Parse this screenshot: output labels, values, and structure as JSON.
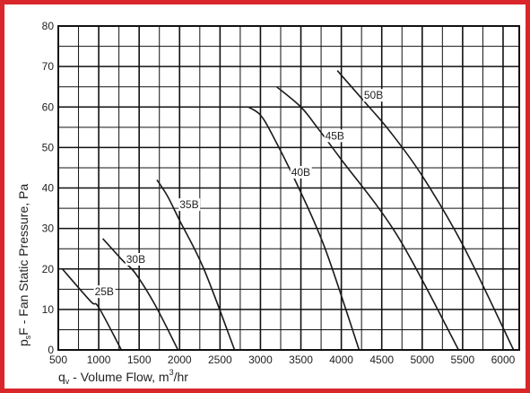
{
  "chart_data": {
    "type": "line",
    "title": "",
    "xlabel": "qv - Volume Flow, m3/hr",
    "ylabel": "psF - Fan Static Pressure, Pa",
    "xlabel_parts": {
      "symbol": "q",
      "sub": "v",
      "text": " - Volume Flow, m",
      "sup": "3",
      "tail": "/hr"
    },
    "ylabel_parts": {
      "symbol": "p",
      "sub": "s",
      "text": "F - Fan Static Pressure, Pa"
    },
    "xlim": [
      500,
      6200
    ],
    "ylim": [
      0,
      80
    ],
    "x_ticks": [
      "500",
      "1000",
      "1500",
      "2000",
      "2500",
      "3000",
      "3500",
      "4000",
      "4500",
      "5000",
      "5500",
      "6000"
    ],
    "y_ticks": [
      "0",
      "10",
      "20",
      "30",
      "40",
      "50",
      "60",
      "70",
      "80"
    ],
    "grid": true,
    "line_color": "#1a1a1a",
    "series": [
      {
        "name": "25B",
        "x": [
          550,
          900,
          1000,
          1280
        ],
        "y": [
          20,
          12,
          10.5,
          0
        ],
        "label_x": 950,
        "label_y": 13.5
      },
      {
        "name": "30B",
        "x": [
          1050,
          1300,
          1450,
          1700,
          1980
        ],
        "y": [
          27.5,
          22,
          19,
          11,
          0
        ],
        "label_x": 1340,
        "label_y": 21.5
      },
      {
        "name": "35B",
        "x": [
          1720,
          1850,
          2000,
          2300,
          2680
        ],
        "y": [
          42,
          38,
          32,
          20,
          0
        ],
        "label_x": 2000,
        "label_y": 35
      },
      {
        "name": "40B",
        "x": [
          2850,
          3000,
          3150,
          3450,
          3800,
          4220
        ],
        "y": [
          60,
          58,
          53,
          41,
          25,
          0
        ],
        "label_x": 3380,
        "label_y": 43
      },
      {
        "name": "45B",
        "x": [
          3200,
          3500,
          3700,
          4000,
          4700,
          5450
        ],
        "y": [
          65,
          60,
          55,
          47,
          28,
          0
        ],
        "label_x": 3800,
        "label_y": 52
      },
      {
        "name": "50B",
        "x": [
          3950,
          4300,
          4600,
          5000,
          5500,
          6130
        ],
        "y": [
          69,
          61,
          54,
          43,
          26,
          0
        ],
        "label_x": 4280,
        "label_y": 62
      }
    ]
  }
}
